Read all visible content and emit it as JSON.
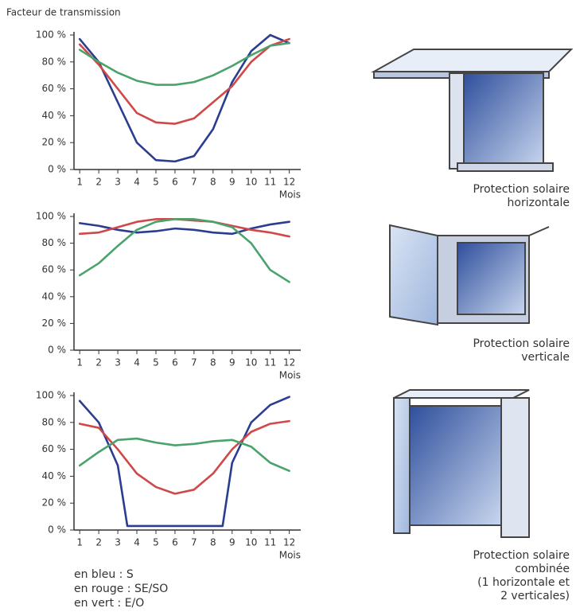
{
  "chart_data": [
    {
      "type": "line",
      "title": "Facteur de transmission",
      "xlabel": "Mois",
      "xlim": [
        0.7,
        12.6
      ],
      "xticks": [
        1,
        2,
        3,
        4,
        5,
        6,
        7,
        8,
        9,
        10,
        11,
        12
      ],
      "ylim": [
        0,
        100
      ],
      "yticks": [
        {
          "value": 0,
          "label": "0 %"
        },
        {
          "value": 20,
          "label": "20 %"
        },
        {
          "value": 40,
          "label": "40 %"
        },
        {
          "value": 60,
          "label": "60 %"
        },
        {
          "value": 80,
          "label": "80 %"
        },
        {
          "value": 100,
          "label": "100 %"
        }
      ],
      "caption": [
        "Protection solaire",
        "horizontale"
      ],
      "series": [
        {
          "color": "#2b3d8f",
          "x": [
            1,
            2,
            3,
            4,
            5,
            6,
            7,
            8,
            9,
            10,
            11,
            12
          ],
          "values": [
            97,
            80,
            50,
            20,
            7,
            6,
            10,
            30,
            65,
            88,
            100,
            94
          ]
        },
        {
          "color": "#d04848",
          "x": [
            1,
            2,
            3,
            4,
            5,
            6,
            7,
            8,
            9,
            10,
            11,
            12
          ],
          "values": [
            93,
            78,
            60,
            42,
            35,
            34,
            38,
            50,
            62,
            80,
            92,
            97
          ]
        },
        {
          "color": "#4aa36a",
          "x": [
            1,
            2,
            3,
            4,
            5,
            6,
            7,
            8,
            9,
            10,
            11,
            12
          ],
          "values": [
            89,
            80,
            72,
            66,
            63,
            63,
            65,
            70,
            77,
            85,
            92,
            94
          ]
        }
      ]
    },
    {
      "type": "line",
      "xlabel": "Mois",
      "xlim": [
        0.7,
        12.6
      ],
      "xticks": [
        1,
        2,
        3,
        4,
        5,
        6,
        7,
        8,
        9,
        10,
        11,
        12
      ],
      "ylim": [
        0,
        100
      ],
      "yticks": [
        {
          "value": 0,
          "label": "0 %"
        },
        {
          "value": 20,
          "label": "20 %"
        },
        {
          "value": 40,
          "label": "40 %"
        },
        {
          "value": 60,
          "label": "60 %"
        },
        {
          "value": 80,
          "label": "80 %"
        },
        {
          "value": 100,
          "label": "100 %"
        }
      ],
      "caption": [
        "Protection solaire",
        "verticale"
      ],
      "series": [
        {
          "color": "#2b3d8f",
          "x": [
            1,
            2,
            3,
            4,
            5,
            6,
            7,
            8,
            9,
            10,
            11,
            12
          ],
          "values": [
            95,
            93,
            90,
            88,
            89,
            91,
            90,
            88,
            87,
            91,
            94,
            96
          ]
        },
        {
          "color": "#d04848",
          "x": [
            1,
            2,
            3,
            4,
            5,
            6,
            7,
            8,
            9,
            10,
            11,
            12
          ],
          "values": [
            87,
            88,
            92,
            96,
            98,
            98,
            97,
            96,
            93,
            90,
            88,
            85
          ]
        },
        {
          "color": "#4aa36a",
          "x": [
            1,
            2,
            3,
            4,
            5,
            6,
            7,
            8,
            9,
            10,
            11,
            12
          ],
          "values": [
            56,
            65,
            78,
            90,
            96,
            98,
            98,
            96,
            92,
            80,
            60,
            51
          ]
        }
      ]
    },
    {
      "type": "line",
      "xlabel": "Mois",
      "xlim": [
        0.7,
        12.6
      ],
      "xticks": [
        1,
        2,
        3,
        4,
        5,
        6,
        7,
        8,
        9,
        10,
        11,
        12
      ],
      "ylim": [
        0,
        100
      ],
      "yticks": [
        {
          "value": 0,
          "label": "0 %"
        },
        {
          "value": 20,
          "label": "20 %"
        },
        {
          "value": 40,
          "label": "40 %"
        },
        {
          "value": 60,
          "label": "60 %"
        },
        {
          "value": 80,
          "label": "80 %"
        },
        {
          "value": 100,
          "label": "100 %"
        }
      ],
      "caption": [
        "Protection solaire",
        "combinée",
        "(1 horizontale et",
        "2 verticales)"
      ],
      "series": [
        {
          "color": "#2b3d8f",
          "x": [
            1,
            2,
            3,
            3.5,
            4,
            5,
            6,
            7,
            8,
            8.5,
            9,
            10,
            11,
            12
          ],
          "values": [
            96,
            80,
            48,
            3,
            3,
            3,
            3,
            3,
            3,
            3,
            50,
            80,
            93,
            99
          ]
        },
        {
          "color": "#d04848",
          "x": [
            1,
            2,
            3,
            4,
            5,
            6,
            7,
            8,
            9,
            10,
            11,
            12
          ],
          "values": [
            79,
            76,
            60,
            42,
            32,
            27,
            30,
            42,
            60,
            73,
            79,
            81
          ]
        },
        {
          "color": "#4aa36a",
          "x": [
            1,
            2,
            3,
            4,
            5,
            6,
            7,
            8,
            9,
            10,
            11,
            12
          ],
          "values": [
            48,
            58,
            67,
            68,
            65,
            63,
            64,
            66,
            67,
            62,
            50,
            44
          ]
        }
      ]
    }
  ],
  "legend": [
    "en bleu : S",
    "en rouge : SE/SO",
    "en vert : E/O"
  ]
}
